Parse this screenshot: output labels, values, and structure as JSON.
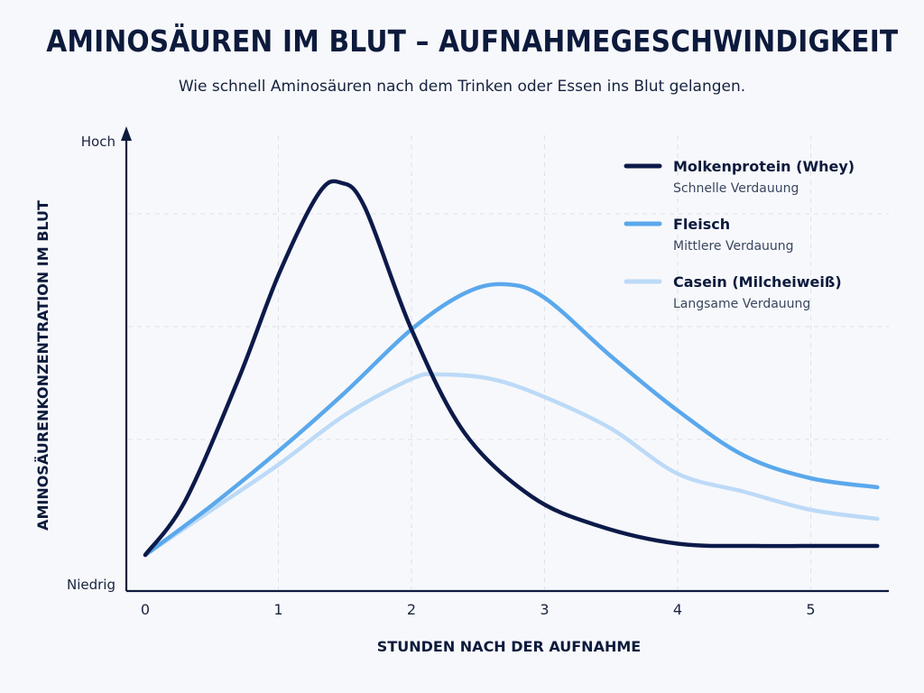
{
  "header": {
    "title": "AMINOSÄUREN IM BLUT – AUFNAHMEGESCHWINDIGKEIT",
    "subtitle": "Wie schnell Aminosäuren nach dem Trinken oder Essen ins Blut gelangen."
  },
  "chart_data": {
    "type": "line",
    "title": "AMINOSÄUREN IM BLUT – AUFNAHMEGESCHWINDIGKEIT",
    "subtitle": "Wie schnell Aminosäuren nach dem Trinken oder Essen ins Blut gelangen.",
    "xlabel": "STUNDEN NACH DER AUFNAHME",
    "ylabel": "AMINOSÄURENKONZENTRATION IM BLUT",
    "y_tick_labels": {
      "top": "Hoch",
      "bottom": "Niedrig"
    },
    "xlim": [
      0,
      5.5
    ],
    "ylim": [
      0,
      1
    ],
    "x_ticks": [
      0,
      1,
      2,
      3,
      4,
      5
    ],
    "grid": true,
    "legend_position": "top-right",
    "series": [
      {
        "name": "Molkenprotein (Whey)",
        "description": "Schnelle Verdauung",
        "color": "#0c1a4a",
        "x": [
          0,
          0.3,
          0.7,
          1.0,
          1.3,
          1.47,
          1.65,
          2.0,
          2.4,
          2.9,
          3.4,
          4.0,
          4.6,
          5.0,
          5.5
        ],
        "y": [
          0.0,
          0.12,
          0.39,
          0.62,
          0.8,
          0.825,
          0.77,
          0.5,
          0.27,
          0.13,
          0.065,
          0.025,
          0.02,
          0.02,
          0.02
        ]
      },
      {
        "name": "Fleisch",
        "description": "Mittlere Verdauung",
        "color": "#5aa8ec",
        "x": [
          0,
          0.5,
          1.0,
          1.5,
          2.0,
          2.4,
          2.7,
          3.0,
          3.5,
          4.0,
          4.5,
          5.0,
          5.5
        ],
        "y": [
          0.0,
          0.11,
          0.23,
          0.36,
          0.5,
          0.58,
          0.6,
          0.57,
          0.44,
          0.32,
          0.22,
          0.17,
          0.15
        ]
      },
      {
        "name": "Casein (Milcheiweiß)",
        "description": "Langsame Verdauung",
        "color": "#bcdaf7",
        "x": [
          0,
          0.5,
          1.0,
          1.5,
          2.0,
          2.2,
          2.6,
          3.0,
          3.5,
          4.0,
          4.5,
          5.0,
          5.5
        ],
        "y": [
          0.0,
          0.1,
          0.2,
          0.31,
          0.39,
          0.4,
          0.39,
          0.35,
          0.28,
          0.18,
          0.14,
          0.1,
          0.08
        ]
      }
    ]
  }
}
